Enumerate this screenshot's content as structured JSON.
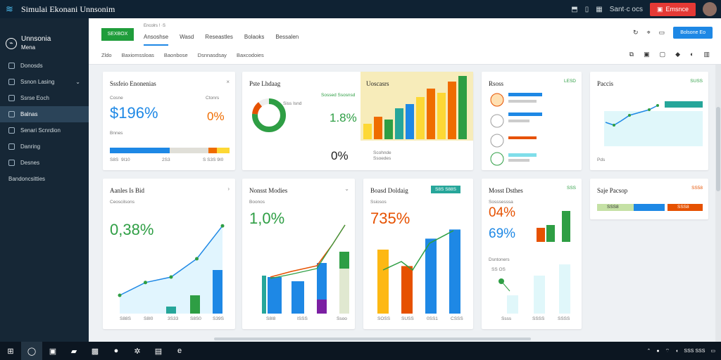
{
  "titlebar": {
    "title": "Simulai Ekonani Unnsonim",
    "user_label": "Sant·c ocs",
    "action_label": "Emsnce",
    "icons": [
      "ribbon-icon",
      "file-icon",
      "grid-icon"
    ]
  },
  "sidebar": {
    "brand": "Unnsonia",
    "brand_sub": "Mena",
    "items": [
      {
        "label": "Donosds"
      },
      {
        "label": "Ssnon Lasing"
      },
      {
        "label": "Ssrse Eoch"
      },
      {
        "label": "Balnas"
      },
      {
        "label": "Senari Scnrdion"
      },
      {
        "label": "Danring"
      },
      {
        "label": "Desnes"
      },
      {
        "label": "Bandoncsitties"
      }
    ]
  },
  "topbar": {
    "start_btn": "SEXBOX",
    "crumb": "Encolrs ! ·S",
    "tabs": [
      "Ansoshse",
      "Wasd",
      "Reseastles",
      "Bolaoks",
      "Bessalen"
    ],
    "sub": [
      "Zldo",
      "Baxiomssloas",
      "Baonbose",
      "Dsnnasdsay",
      "Baxcodoies"
    ],
    "blue_btn": "Bolsone Eo"
  },
  "cards": {
    "c1": {
      "title": "Sssfeio Enonenias",
      "small": "Cosne",
      "big": "$196%",
      "small2": "Bnnes",
      "big2": "0%",
      "tag": "Ctonrs",
      "labels": [
        "S8S",
        "9I10",
        "2S3",
        "S S3S 9I0"
      ]
    },
    "c2": {
      "title": "Pste Lhdaag",
      "dlabel": "Siss Isnd",
      "legend": "Sossed Ssosnsd",
      "big": "1.8%",
      "big2": "0%",
      "leg2": "Scohnde",
      "leg3": "Ssoedes"
    },
    "c3": {
      "title": "Uoscasrs"
    },
    "c4": {
      "title": "Rsoss",
      "tag": "LESD"
    },
    "c5": {
      "title": "Paccis",
      "tag": "SUSS",
      "label": "Pds"
    },
    "c6": {
      "title": "Aanles Is Bid",
      "small": "Ceoscilsons",
      "big": "0,38%",
      "xl": [
        "S88S",
        "S8I0",
        "3S33",
        "S8S0",
        "S39S"
      ]
    },
    "c7": {
      "title": "Nonsst Modies",
      "small": "Boonos",
      "big": "1,0%",
      "xl": [
        "S8I8",
        "ISSS",
        "Ssoo"
      ]
    },
    "c8": {
      "title": "Boasd Doldaig",
      "btn": "S8S S88S",
      "small": "Ssiosos",
      "big": "735%",
      "xl": [
        "SOSS",
        "SUSS",
        "0SS1",
        "CSSS"
      ]
    },
    "c9": {
      "title": "Mosst Dsthes",
      "tag": "SSS",
      "small": "Sosssesssa",
      "big": "04%",
      "big2": "69%",
      "label": "Dsntoners",
      "s": "SS OS",
      "xl": [
        "Ssss",
        "SSSS",
        "SSSS"
      ]
    },
    "c10": {
      "title": "Saje Pacsop",
      "tag": "SS58",
      "l1": "SSS8",
      "l2": "SSS8"
    }
  },
  "chart_data": [
    {
      "type": "line",
      "name": "c6",
      "x": [
        1,
        2,
        3,
        4,
        5
      ],
      "values": [
        20,
        34,
        40,
        60,
        96
      ]
    },
    {
      "type": "bar",
      "name": "c8",
      "categories": [
        "a",
        "b",
        "c",
        "d"
      ],
      "values": [
        70,
        52,
        82,
        92
      ]
    }
  ],
  "taskbar": {
    "time": "SSS SSS"
  }
}
